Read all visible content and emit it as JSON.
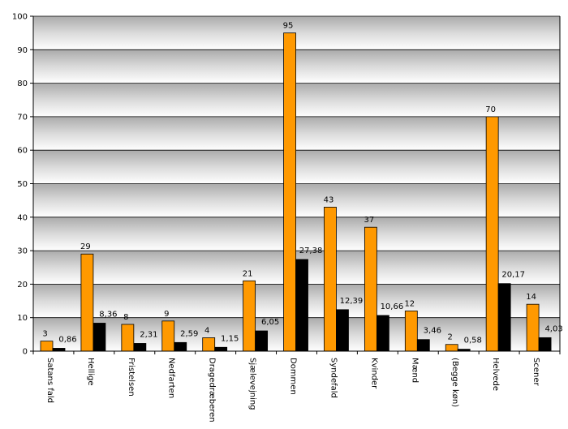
{
  "chart_data": {
    "type": "bar",
    "title": "",
    "xlabel": "",
    "ylabel": "",
    "ylim": [
      0,
      100
    ],
    "yticks": [
      0,
      10,
      20,
      30,
      40,
      50,
      60,
      70,
      80,
      90,
      100
    ],
    "grid": true,
    "legend": "none",
    "categories": [
      "Satans fald",
      "Hellige",
      "Fristelsen",
      "Nedfarten",
      "Dragedræberen",
      "Sjælevejning",
      "Dommen",
      "Syndefald",
      "Kvinder",
      "Mænd",
      "(Begge køn)",
      "Helvede",
      "Scener"
    ],
    "series": [
      {
        "color": "#FF9900",
        "values": [
          3,
          29,
          8,
          9,
          4,
          21,
          95,
          43,
          37,
          12,
          2,
          70,
          14
        ],
        "labels": [
          "3",
          "29",
          "8",
          "9",
          "4",
          "21",
          "95",
          "43",
          "37",
          "12",
          "2",
          "70",
          "14"
        ]
      },
      {
        "color": "#000000",
        "values": [
          0.86,
          8.36,
          2.31,
          2.59,
          1.15,
          6.05,
          27.38,
          12.39,
          10.66,
          3.46,
          0.58,
          20.17,
          4.03
        ],
        "labels": [
          "0,86",
          "8,36",
          "2,31",
          "2,59",
          "1,15",
          "6,05",
          "27,38",
          "12,39",
          "10,66",
          "3,46",
          "0,58",
          "20,17",
          "4,03"
        ]
      }
    ]
  }
}
